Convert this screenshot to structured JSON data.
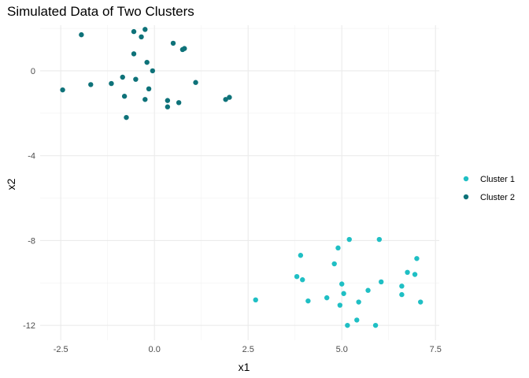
{
  "chart_data": {
    "type": "scatter",
    "title": "Simulated Data of Two Clusters",
    "xlabel": "x1",
    "ylabel": "x2",
    "xlim": [
      -2.5,
      7.5
    ],
    "ylim": [
      -12,
      2
    ],
    "x_ticks": [
      "-2.5",
      "0.0",
      "2.5",
      "5.0",
      "7.5"
    ],
    "y_ticks": [
      "-12",
      "-8",
      "-4",
      "0"
    ],
    "grid": true,
    "legend_position": "right",
    "series": [
      {
        "name": "Cluster 1",
        "color": "#1fbfc4",
        "points": [
          {
            "x": 2.7,
            "y": -10.8
          },
          {
            "x": 3.8,
            "y": -9.7
          },
          {
            "x": 3.9,
            "y": -8.7
          },
          {
            "x": 3.95,
            "y": -9.85
          },
          {
            "x": 4.1,
            "y": -10.85
          },
          {
            "x": 4.6,
            "y": -10.7
          },
          {
            "x": 4.8,
            "y": -9.1
          },
          {
            "x": 4.9,
            "y": -8.35
          },
          {
            "x": 4.95,
            "y": -11.05
          },
          {
            "x": 5.0,
            "y": -10.05
          },
          {
            "x": 5.05,
            "y": -10.5
          },
          {
            "x": 5.15,
            "y": -12.0
          },
          {
            "x": 5.2,
            "y": -7.95
          },
          {
            "x": 5.4,
            "y": -11.75
          },
          {
            "x": 5.45,
            "y": -10.9
          },
          {
            "x": 5.7,
            "y": -10.35
          },
          {
            "x": 5.9,
            "y": -12.0
          },
          {
            "x": 6.0,
            "y": -7.95
          },
          {
            "x": 6.05,
            "y": -9.95
          },
          {
            "x": 6.6,
            "y": -10.15
          },
          {
            "x": 6.6,
            "y": -10.55
          },
          {
            "x": 6.75,
            "y": -9.5
          },
          {
            "x": 6.95,
            "y": -9.6
          },
          {
            "x": 7.0,
            "y": -8.85
          },
          {
            "x": 7.1,
            "y": -10.9
          }
        ]
      },
      {
        "name": "Cluster 2",
        "color": "#0e7279",
        "points": [
          {
            "x": -2.45,
            "y": -0.9
          },
          {
            "x": -1.95,
            "y": 1.7
          },
          {
            "x": -1.7,
            "y": -0.65
          },
          {
            "x": -1.15,
            "y": -0.6
          },
          {
            "x": -0.85,
            "y": -0.3
          },
          {
            "x": -0.8,
            "y": -1.2
          },
          {
            "x": -0.75,
            "y": -2.2
          },
          {
            "x": -0.55,
            "y": 1.85
          },
          {
            "x": -0.55,
            "y": 0.8
          },
          {
            "x": -0.5,
            "y": -0.4
          },
          {
            "x": -0.35,
            "y": 1.6
          },
          {
            "x": -0.25,
            "y": 1.95
          },
          {
            "x": -0.25,
            "y": -1.35
          },
          {
            "x": -0.2,
            "y": 0.4
          },
          {
            "x": -0.15,
            "y": -0.85
          },
          {
            "x": -0.05,
            "y": 0.0
          },
          {
            "x": 0.35,
            "y": -1.4
          },
          {
            "x": 0.35,
            "y": -1.7
          },
          {
            "x": 0.5,
            "y": 1.3
          },
          {
            "x": 0.65,
            "y": -1.5
          },
          {
            "x": 0.75,
            "y": 1.0
          },
          {
            "x": 0.8,
            "y": 1.05
          },
          {
            "x": 1.1,
            "y": -0.55
          },
          {
            "x": 1.9,
            "y": -1.35
          },
          {
            "x": 2.0,
            "y": -1.25
          }
        ]
      }
    ]
  }
}
